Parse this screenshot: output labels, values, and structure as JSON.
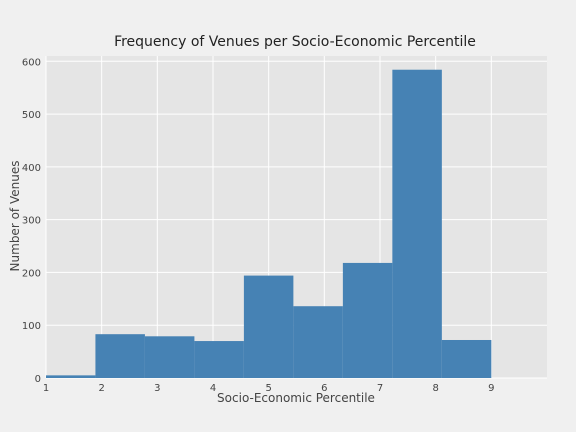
{
  "chart_data": {
    "type": "bar",
    "title": "Frequency of Venues per Socio-Economic Percentile",
    "xlabel": "Socio-Economic Percentile",
    "ylabel": "Number of Venues",
    "xlim": [
      1,
      10
    ],
    "ylim": [
      0,
      610
    ],
    "xticks": [
      "1",
      "2",
      "3",
      "4",
      "5",
      "6",
      "7",
      "8",
      "9"
    ],
    "yticks": [
      "0",
      "100",
      "200",
      "300",
      "400",
      "500",
      "600"
    ],
    "bins": [
      {
        "start": 1.0,
        "end": 1.888,
        "value": 5
      },
      {
        "start": 1.888,
        "end": 2.777,
        "value": 83
      },
      {
        "start": 2.777,
        "end": 3.666,
        "value": 79
      },
      {
        "start": 3.666,
        "end": 4.555,
        "value": 70
      },
      {
        "start": 4.555,
        "end": 5.444,
        "value": 194
      },
      {
        "start": 5.444,
        "end": 6.333,
        "value": 136
      },
      {
        "start": 6.333,
        "end": 7.222,
        "value": 218
      },
      {
        "start": 7.222,
        "end": 8.111,
        "value": 584
      },
      {
        "start": 8.111,
        "end": 9.0,
        "value": 72
      }
    ],
    "grid": true
  },
  "colors": {
    "bar": "#4682b4",
    "plot_bg": "#e5e5e5",
    "grid": "#ffffff",
    "figure_bg": "#f0f0f0"
  }
}
